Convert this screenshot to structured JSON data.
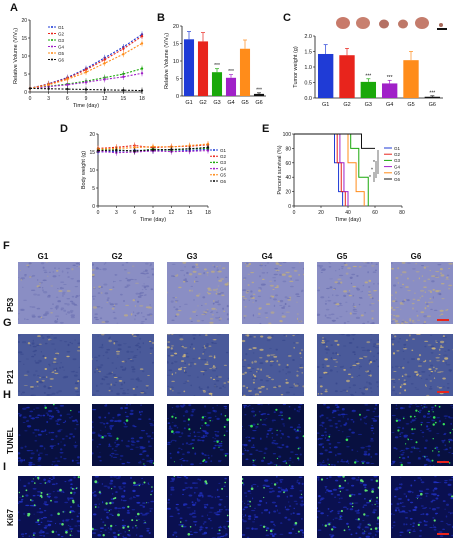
{
  "panels": {
    "A": "A",
    "B": "B",
    "C": "C",
    "D": "D",
    "E": "E",
    "F": "F",
    "G": "G",
    "H": "H",
    "I": "I"
  },
  "groups": [
    "G1",
    "G2",
    "G3",
    "G4",
    "G5",
    "G6"
  ],
  "group_colors": [
    "#1f3bd6",
    "#e8241c",
    "#1aa80a",
    "#a020c8",
    "#ff8c1a",
    "#111111"
  ],
  "row_labels": [
    "P53",
    "P21",
    "TUNEL",
    "Ki67"
  ],
  "chart_data": [
    {
      "id": "A",
      "type": "line",
      "ylabel": "Relative Volume (V/V₀)",
      "xlabel": "Time (day)",
      "x": [
        0,
        3,
        6,
        9,
        12,
        15,
        18
      ],
      "ylim": [
        0,
        20
      ],
      "xlim": [
        0,
        18
      ],
      "yticks": [
        0,
        5,
        10,
        15,
        20
      ],
      "xticks": [
        0,
        3,
        6,
        9,
        12,
        15,
        18
      ],
      "series": [
        {
          "name": "G1",
          "values": [
            1,
            2.3,
            4,
            6.5,
            9.5,
            12.5,
            16
          ]
        },
        {
          "name": "G2",
          "values": [
            1,
            2.2,
            3.8,
            6.2,
            9,
            12,
            15.5
          ]
        },
        {
          "name": "G3",
          "values": [
            1,
            1.6,
            2.2,
            3,
            4,
            5,
            6.5
          ]
        },
        {
          "name": "G4",
          "values": [
            1,
            1.5,
            2,
            2.7,
            3.5,
            4.2,
            5.2
          ]
        },
        {
          "name": "G5",
          "values": [
            1,
            2,
            3.5,
            5.5,
            8,
            10.5,
            13.5
          ]
        },
        {
          "name": "G6",
          "values": [
            1,
            0.9,
            0.8,
            0.7,
            0.6,
            0.5,
            0.4
          ]
        }
      ]
    },
    {
      "id": "B",
      "type": "bar",
      "ylabel": "Relative Volume (V/V₀)",
      "categories": [
        "G1",
        "G2",
        "G3",
        "G4",
        "G5",
        "G6"
      ],
      "values": [
        16.2,
        15.6,
        6.8,
        5.2,
        13.5,
        0.6
      ],
      "errors": [
        2.2,
        2.5,
        1.0,
        0.9,
        2.5,
        0.3
      ],
      "annotations": [
        "",
        "",
        "***",
        "***",
        "",
        "***"
      ],
      "ylim": [
        0,
        20
      ],
      "yticks": [
        0,
        5,
        10,
        15,
        20
      ]
    },
    {
      "id": "C",
      "type": "bar",
      "ylabel": "Tumor weight (g)",
      "categories": [
        "G1",
        "G2",
        "G3",
        "G4",
        "G5",
        "G6"
      ],
      "values": [
        1.42,
        1.38,
        0.52,
        0.47,
        1.22,
        0.04
      ],
      "errors": [
        0.3,
        0.22,
        0.1,
        0.1,
        0.28,
        0.03
      ],
      "annotations": [
        "",
        "",
        "***",
        "***",
        "",
        "***"
      ],
      "ylim": [
        0,
        2.0
      ],
      "yticks": [
        "0.0",
        "0.5",
        "1.0",
        "1.5",
        "2.0"
      ]
    },
    {
      "id": "D",
      "type": "line",
      "ylabel": "Body weight (g)",
      "xlabel": "Time (day)",
      "x": [
        0,
        3,
        6,
        9,
        12,
        15,
        18
      ],
      "ylim": [
        0,
        20
      ],
      "xlim": [
        0,
        18
      ],
      "yticks": [
        0,
        5,
        10,
        15,
        20
      ],
      "xticks": [
        0,
        3,
        6,
        9,
        12,
        15,
        18
      ],
      "series": [
        {
          "name": "G1",
          "values": [
            15,
            15.2,
            15.5,
            15.3,
            15.6,
            15.4,
            15.8
          ]
        },
        {
          "name": "G2",
          "values": [
            16,
            16.3,
            16.8,
            16.2,
            16.5,
            16.6,
            17
          ]
        },
        {
          "name": "G3",
          "values": [
            15.5,
            15.6,
            15.2,
            15.8,
            15.5,
            15.9,
            16
          ]
        },
        {
          "name": "G4",
          "values": [
            15.2,
            14.8,
            15,
            15.3,
            15.1,
            15.2,
            15.4
          ]
        },
        {
          "name": "G5",
          "values": [
            15.8,
            16,
            16.2,
            16.5,
            16.4,
            16.8,
            17.2
          ]
        },
        {
          "name": "G6",
          "values": [
            15.4,
            15.5,
            15.3,
            15.6,
            15.7,
            15.9,
            16.3
          ]
        }
      ]
    },
    {
      "id": "E",
      "type": "line",
      "ylabel": "Percent survival (%)",
      "xlabel": "Time (day)",
      "ylim": [
        0,
        100
      ],
      "xlim": [
        0,
        80
      ],
      "yticks": [
        0,
        20,
        40,
        60,
        80,
        100
      ],
      "xticks": [
        0,
        20,
        40,
        60,
        80
      ],
      "series": [
        {
          "name": "G1",
          "x": [
            0,
            30,
            30,
            33,
            33,
            36,
            36
          ],
          "values": [
            100,
            100,
            60,
            60,
            20,
            20,
            0
          ]
        },
        {
          "name": "G2",
          "x": [
            0,
            32,
            32,
            35,
            35,
            38,
            38
          ],
          "values": [
            100,
            100,
            60,
            60,
            20,
            20,
            0
          ]
        },
        {
          "name": "G3",
          "x": [
            0,
            42,
            42,
            48,
            48,
            55,
            55
          ],
          "values": [
            100,
            100,
            80,
            80,
            40,
            40,
            0
          ]
        },
        {
          "name": "G4",
          "x": [
            0,
            34,
            34,
            37,
            37,
            40,
            40
          ],
          "values": [
            100,
            100,
            60,
            60,
            20,
            20,
            0
          ]
        },
        {
          "name": "G5",
          "x": [
            0,
            40,
            40,
            46,
            46,
            52,
            52
          ],
          "values": [
            100,
            100,
            60,
            60,
            20,
            20,
            0
          ]
        },
        {
          "name": "G6",
          "x": [
            0,
            50,
            50,
            60,
            60
          ],
          "values": [
            100,
            100,
            80,
            80,
            80
          ]
        }
      ],
      "annotations": [
        "*",
        "*",
        "*"
      ]
    }
  ]
}
